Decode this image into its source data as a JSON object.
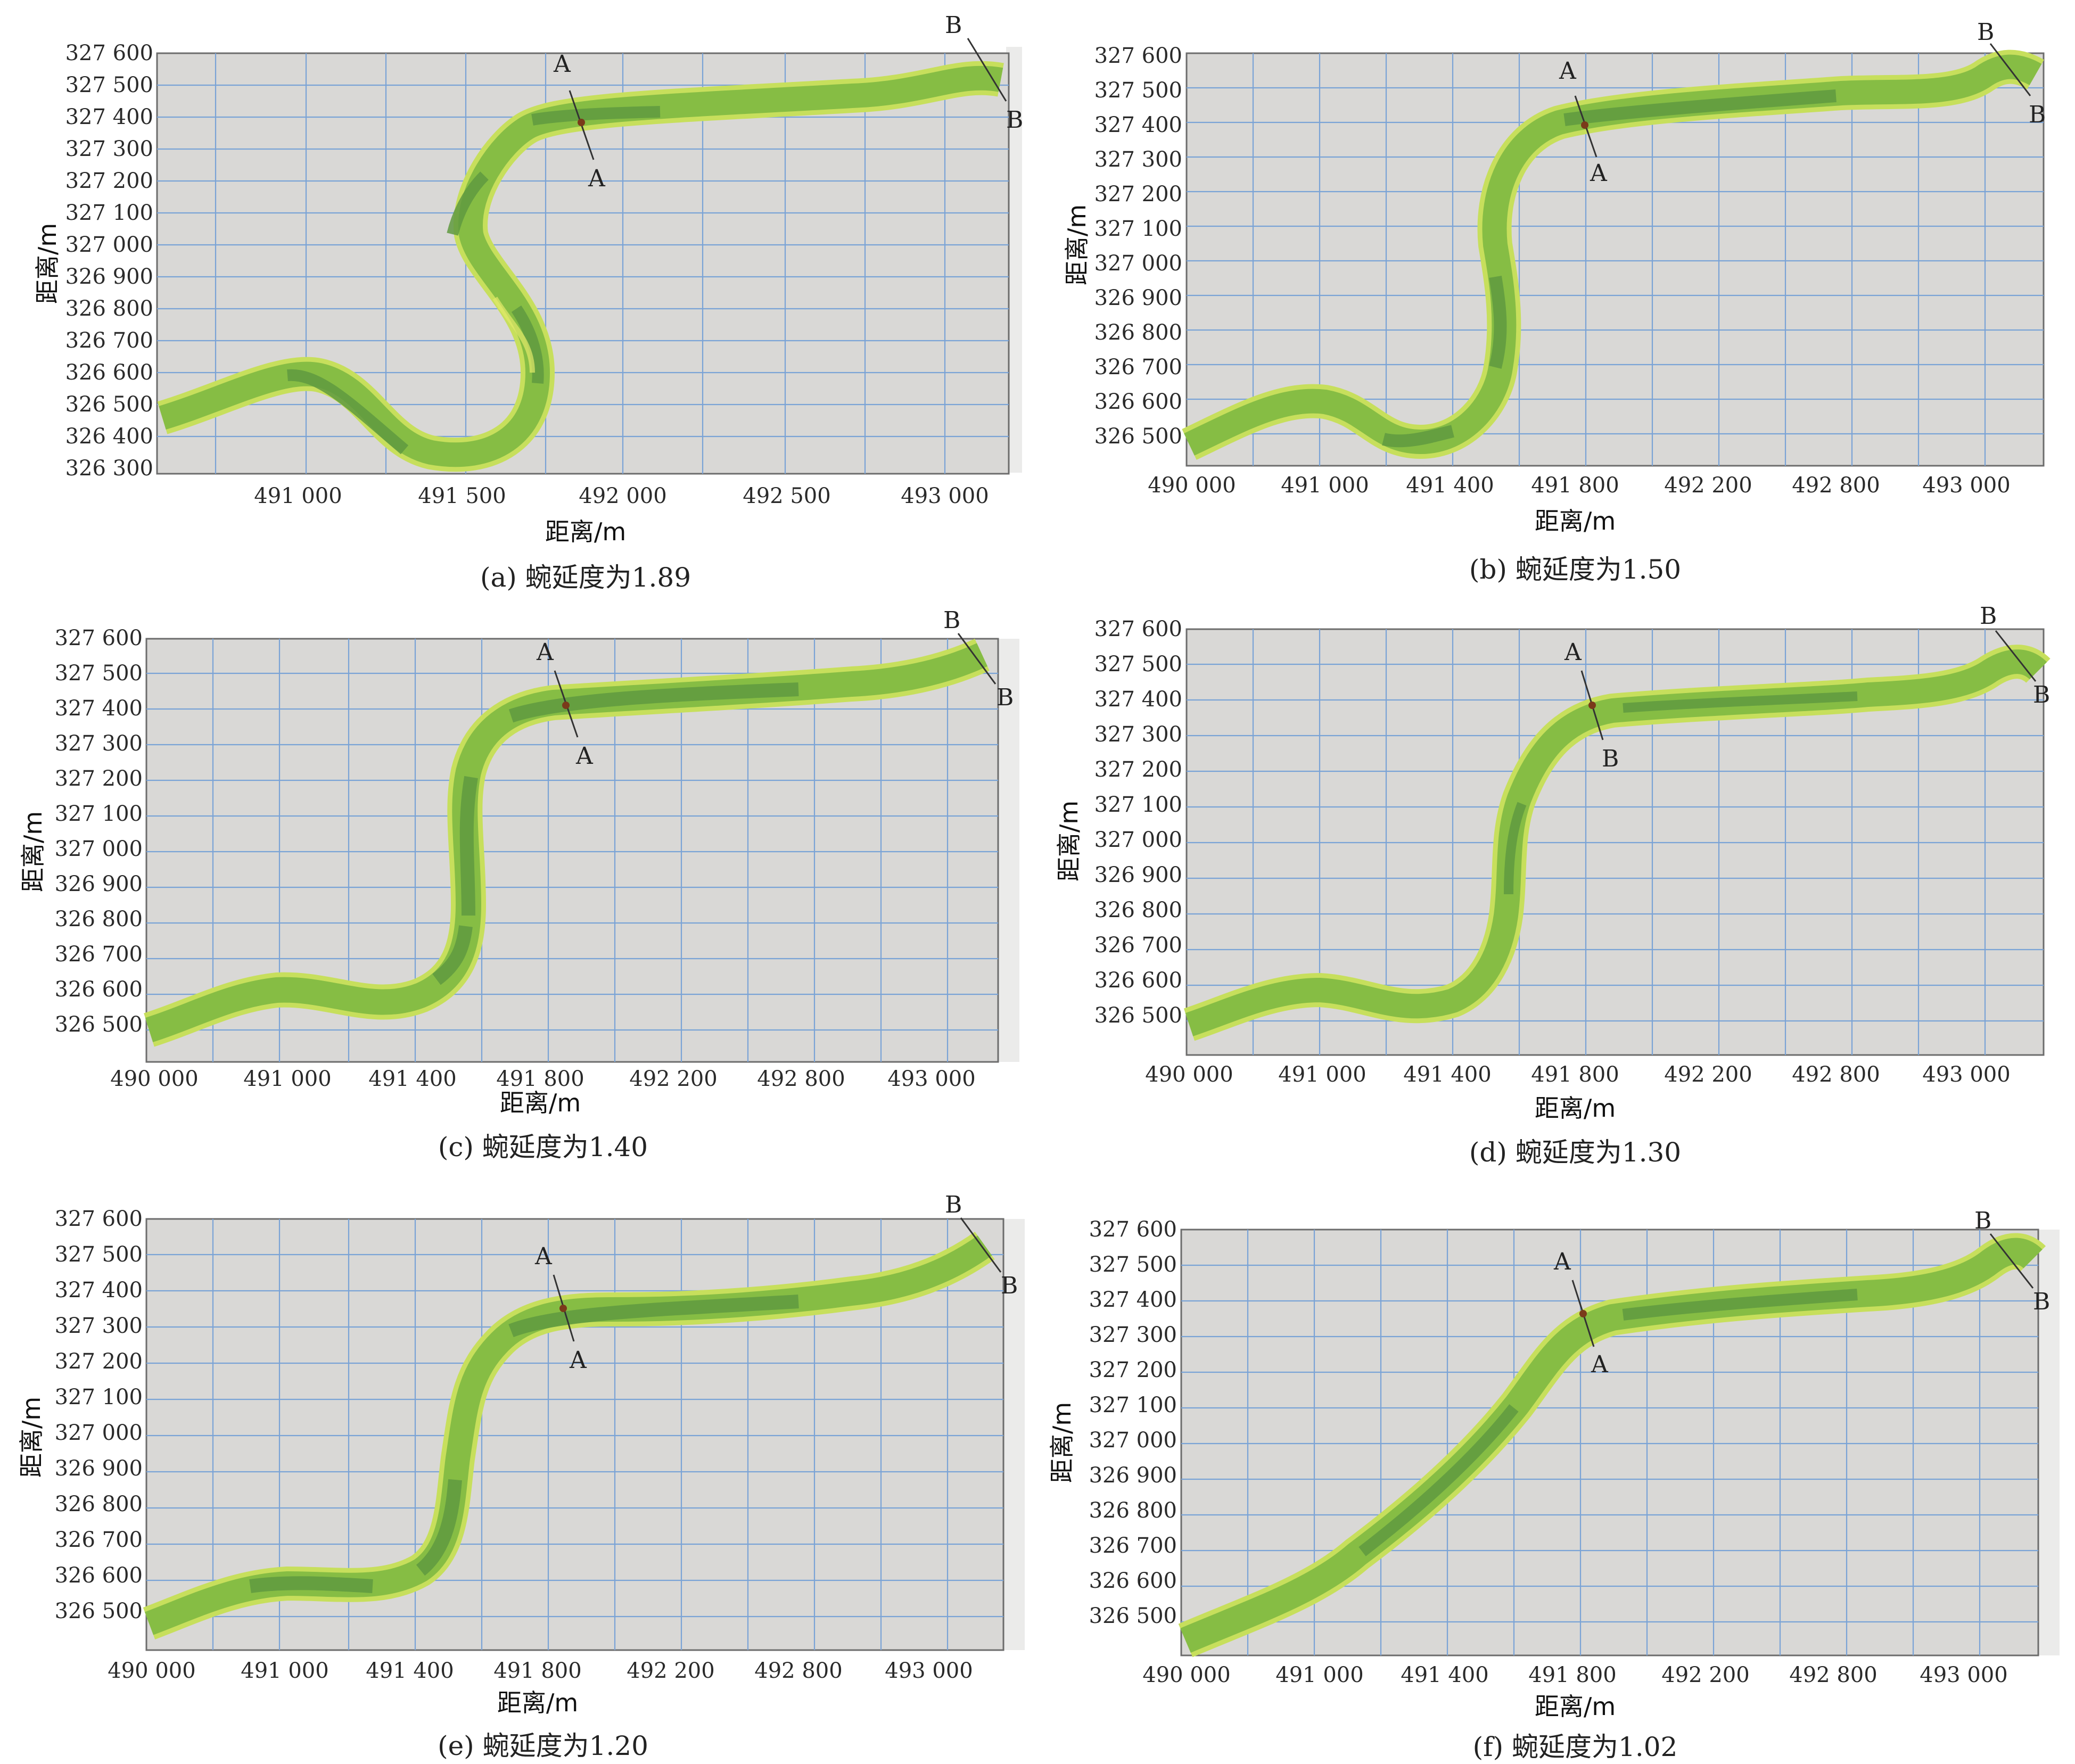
{
  "axis_titles": {
    "x": "距离/m",
    "y": "距离/m"
  },
  "chart_data": [
    {
      "type": "map",
      "panel": "a",
      "caption": "(a) 蜿延度为1.89",
      "xlabel": "距离/m",
      "ylabel": "距离/m",
      "x_ticks": [
        "491 000",
        "491 500",
        "492 000",
        "492 500",
        "493 000"
      ],
      "y_ticks": [
        "327 600",
        "327 500",
        "327 400",
        "327 300",
        "327 200",
        "327 100",
        "327 000",
        "326 900",
        "326 800",
        "326 700",
        "326 600",
        "326 500",
        "326 400",
        "326 300"
      ],
      "sections": [
        {
          "top": "A",
          "bottom": "A"
        },
        {
          "top": "B",
          "bottom": "B"
        }
      ],
      "sinuosity": 1.89
    },
    {
      "type": "map",
      "panel": "b",
      "caption": "(b) 蜿延度为1.50",
      "xlabel": "距离/m",
      "ylabel": "距离/m",
      "x_ticks": [
        "490 000",
        "491 000",
        "491 400",
        "491 800",
        "492 200",
        "492 800",
        "493 000"
      ],
      "y_ticks": [
        "327 600",
        "327 500",
        "327 400",
        "327 300",
        "327 200",
        "327 100",
        "327 000",
        "326 900",
        "326 800",
        "326 700",
        "326 600",
        "326 500"
      ],
      "sections": [
        {
          "top": "A",
          "bottom": "A"
        },
        {
          "top": "B",
          "bottom": "B"
        }
      ],
      "sinuosity": 1.5
    },
    {
      "type": "map",
      "panel": "c",
      "caption": "(c) 蜿延度为1.40",
      "xlabel": "距离/m",
      "ylabel": "距离/m",
      "x_ticks": [
        "490 000",
        "491 000",
        "491 400",
        "491 800",
        "492 200",
        "492 800",
        "493 000"
      ],
      "y_ticks": [
        "327 600",
        "327 500",
        "327 400",
        "327 300",
        "327 200",
        "327 100",
        "327 000",
        "326 900",
        "326 800",
        "326 700",
        "326 600",
        "326 500"
      ],
      "sections": [
        {
          "top": "A",
          "bottom": "A"
        },
        {
          "top": "B",
          "bottom": "B"
        }
      ],
      "sinuosity": 1.4
    },
    {
      "type": "map",
      "panel": "d",
      "caption": "(d) 蜿延度为1.30",
      "xlabel": "距离/m",
      "ylabel": "距离/m",
      "x_ticks": [
        "490 000",
        "491 000",
        "491 400",
        "491 800",
        "492 200",
        "492 800",
        "493 000"
      ],
      "y_ticks": [
        "327 600",
        "327 500",
        "327 400",
        "327 300",
        "327 200",
        "327 100",
        "327 000",
        "326 900",
        "326 800",
        "326 700",
        "326 600",
        "326 500"
      ],
      "sections": [
        {
          "top": "A",
          "bottom": "B"
        },
        {
          "top": "B",
          "bottom": "B"
        }
      ],
      "sinuosity": 1.3
    },
    {
      "type": "map",
      "panel": "e",
      "caption": "(e) 蜿延度为1.20",
      "xlabel": "距离/m",
      "ylabel": "距离/m",
      "x_ticks": [
        "490 000",
        "491 000",
        "491 400",
        "491 800",
        "492 200",
        "492 800",
        "493 000"
      ],
      "y_ticks": [
        "327 600",
        "327 500",
        "327 400",
        "327 300",
        "327 200",
        "327 100",
        "327 000",
        "326 900",
        "326 800",
        "326 700",
        "326 600",
        "326 500"
      ],
      "sections": [
        {
          "top": "A",
          "bottom": "A"
        },
        {
          "top": "B",
          "bottom": "B"
        }
      ],
      "sinuosity": 1.2
    },
    {
      "type": "map",
      "panel": "f",
      "caption": "(f) 蜿延度为1.02",
      "xlabel": "距离/m",
      "ylabel": "距离/m",
      "x_ticks": [
        "490 000",
        "491 000",
        "491 400",
        "491 800",
        "492 200",
        "492 800",
        "493 000"
      ],
      "y_ticks": [
        "327 600",
        "327 500",
        "327 400",
        "327 300",
        "327 200",
        "327 100",
        "327 000",
        "326 900",
        "326 800",
        "326 700",
        "326 600",
        "326 500"
      ],
      "sections": [
        {
          "top": "A",
          "bottom": "A"
        },
        {
          "top": "B",
          "bottom": "B"
        }
      ],
      "sinuosity": 1.02
    }
  ]
}
